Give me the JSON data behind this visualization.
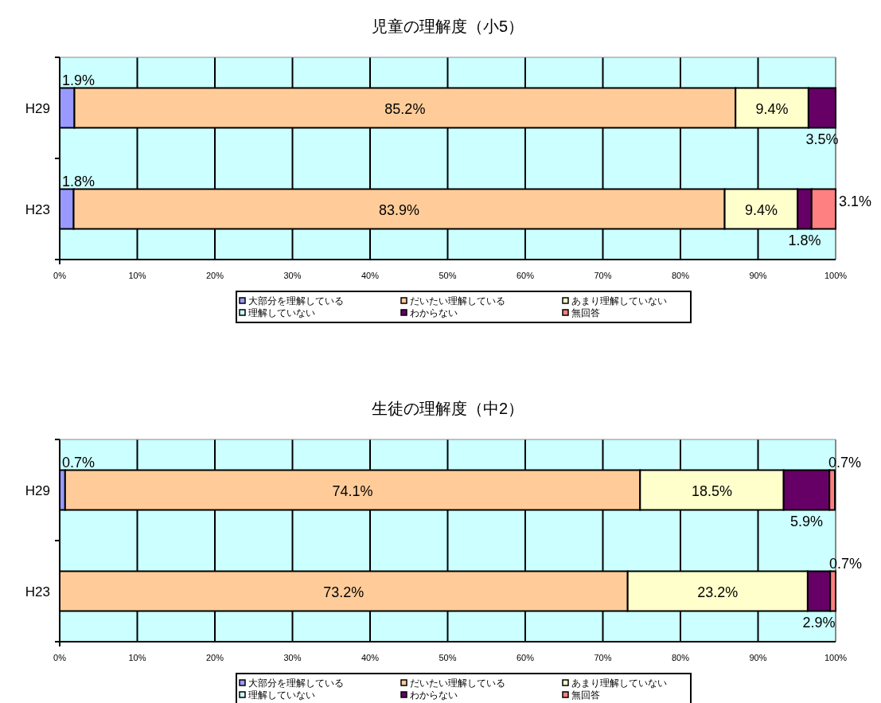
{
  "chart_data": [
    {
      "type": "bar",
      "orientation": "horizontal",
      "stacked": true,
      "title": "児童の理解度（小5）",
      "categories": [
        "H29",
        "H23"
      ],
      "xlim": [
        0,
        100
      ],
      "xticks": [
        {
          "value": 0,
          "label": "0%"
        },
        {
          "value": 10,
          "label": "10%"
        },
        {
          "value": 20,
          "label": "20%"
        },
        {
          "value": 30,
          "label": "30%"
        },
        {
          "value": 40,
          "label": "40%"
        },
        {
          "value": 50,
          "label": "50%"
        },
        {
          "value": 60,
          "label": "60%"
        },
        {
          "value": 70,
          "label": "70%"
        },
        {
          "value": 80,
          "label": "80%"
        },
        {
          "value": 90,
          "label": "90%"
        },
        {
          "value": 100,
          "label": "100%"
        }
      ],
      "grid": "x",
      "legend": "bottom",
      "series": [
        {
          "name": "大部分を理解している",
          "color": "#9999ff",
          "values": [
            1.9,
            1.8
          ],
          "value_labels": [
            "1.9%",
            "1.8%"
          ]
        },
        {
          "name": "だいたい理解している",
          "color": "#ffcc99",
          "values": [
            85.2,
            83.9
          ],
          "value_labels": [
            "85.2%",
            "83.9%"
          ]
        },
        {
          "name": "あまり理解していない",
          "color": "#ffffcc",
          "values": [
            9.4,
            9.4
          ],
          "value_labels": [
            "9.4%",
            "9.4%"
          ]
        },
        {
          "name": "理解していない",
          "color": "#ccffff",
          "values": [
            0,
            0
          ],
          "value_labels": [
            null,
            null
          ]
        },
        {
          "name": "わからない",
          "color": "#660066",
          "values": [
            3.5,
            1.8
          ],
          "value_labels": [
            "3.5%",
            "1.8%"
          ]
        },
        {
          "name": "無回答",
          "color": "#ff8080",
          "values": [
            0,
            3.1
          ],
          "value_labels": [
            null,
            "3.1%"
          ]
        }
      ]
    },
    {
      "type": "bar",
      "orientation": "horizontal",
      "stacked": true,
      "title": "生徒の理解度（中2）",
      "categories": [
        "H29",
        "H23"
      ],
      "xlim": [
        0,
        100
      ],
      "xticks": [
        {
          "value": 0,
          "label": "0%"
        },
        {
          "value": 10,
          "label": "10%"
        },
        {
          "value": 20,
          "label": "20%"
        },
        {
          "value": 30,
          "label": "30%"
        },
        {
          "value": 40,
          "label": "40%"
        },
        {
          "value": 50,
          "label": "50%"
        },
        {
          "value": 60,
          "label": "60%"
        },
        {
          "value": 70,
          "label": "70%"
        },
        {
          "value": 80,
          "label": "80%"
        },
        {
          "value": 90,
          "label": "90%"
        },
        {
          "value": 100,
          "label": "100%"
        }
      ],
      "grid": "x",
      "legend": "bottom",
      "series": [
        {
          "name": "大部分を理解している",
          "color": "#9999ff",
          "values": [
            0.7,
            0
          ],
          "value_labels": [
            "0.7%",
            null
          ]
        },
        {
          "name": "だいたい理解している",
          "color": "#ffcc99",
          "values": [
            74.1,
            73.2
          ],
          "value_labels": [
            "74.1%",
            "73.2%"
          ]
        },
        {
          "name": "あまり理解していない",
          "color": "#ffffcc",
          "values": [
            18.5,
            23.2
          ],
          "value_labels": [
            "18.5%",
            "23.2%"
          ]
        },
        {
          "name": "理解していない",
          "color": "#ccffff",
          "values": [
            0,
            0
          ],
          "value_labels": [
            null,
            null
          ]
        },
        {
          "name": "わからない",
          "color": "#660066",
          "values": [
            5.9,
            2.9
          ],
          "value_labels": [
            "5.9%",
            "2.9%"
          ]
        },
        {
          "name": "無回答",
          "color": "#ff8080",
          "values": [
            0.7,
            0.7
          ],
          "value_labels": [
            "0.7%",
            "0.7%"
          ]
        }
      ]
    }
  ]
}
